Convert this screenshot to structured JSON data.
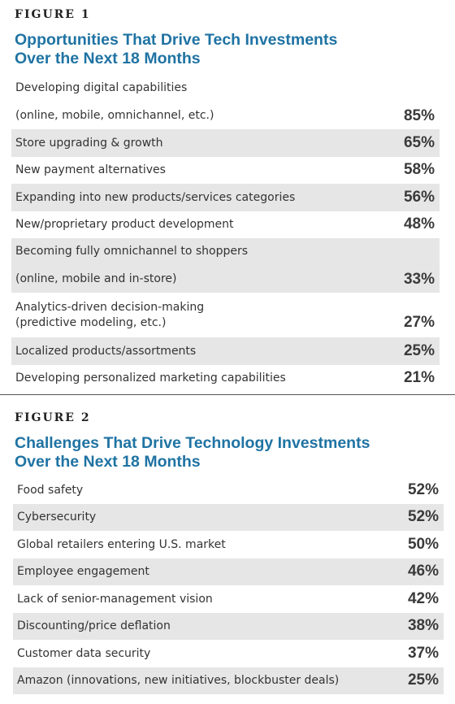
{
  "chart_data": [
    {
      "type": "table",
      "figure_label": "FIGURE 1",
      "title": "Opportunities That Drive Tech Investments Over the Next 18 Months",
      "title_lines": [
        "Opportunities That Drive Tech Investments",
        "Over the Next 18 Months"
      ],
      "rows": [
        {
          "label_lines": [
            "Developing digital capabilities",
            "(online, mobile, omnichannel, etc.)"
          ],
          "value": 85,
          "value_label": "85%"
        },
        {
          "label_lines": [
            "Store upgrading & growth"
          ],
          "value": 65,
          "value_label": "65%"
        },
        {
          "label_lines": [
            "New payment alternatives"
          ],
          "value": 58,
          "value_label": "58%"
        },
        {
          "label_lines": [
            "Expanding into new products/services categories"
          ],
          "value": 56,
          "value_label": "56%"
        },
        {
          "label_lines": [
            "New/proprietary product development"
          ],
          "value": 48,
          "value_label": "48%"
        },
        {
          "label_lines": [
            "Becoming fully omnichannel to shoppers",
            "(online, mobile and in-store)"
          ],
          "value": 33,
          "value_label": "33%"
        },
        {
          "label_lines": [
            "Analytics-driven decision-making",
            "(predictive modeling, etc.)"
          ],
          "value": 27,
          "value_label": "27%"
        },
        {
          "label_lines": [
            "Localized products/assortments"
          ],
          "value": 25,
          "value_label": "25%"
        },
        {
          "label_lines": [
            "Developing personalized marketing capabilities"
          ],
          "value": 21,
          "value_label": "21%"
        }
      ]
    },
    {
      "type": "table",
      "figure_label": "FIGURE 2",
      "title": "Challenges That Drive Technology Investments Over the Next 18 Months",
      "title_lines": [
        "Challenges That Drive Technology Investments",
        "Over the Next 18 Months"
      ],
      "rows": [
        {
          "label_lines": [
            "Food safety"
          ],
          "value": 52,
          "value_label": "52%"
        },
        {
          "label_lines": [
            "Cybersecurity"
          ],
          "value": 52,
          "value_label": "52%"
        },
        {
          "label_lines": [
            "Global retailers entering U.S. market"
          ],
          "value": 50,
          "value_label": "50%"
        },
        {
          "label_lines": [
            "Employee engagement"
          ],
          "value": 46,
          "value_label": "46%"
        },
        {
          "label_lines": [
            "Lack of senior-management vision"
          ],
          "value": 42,
          "value_label": "42%"
        },
        {
          "label_lines": [
            "Discounting/price deflation"
          ],
          "value": 38,
          "value_label": "38%"
        },
        {
          "label_lines": [
            "Customer data security"
          ],
          "value": 37,
          "value_label": "37%"
        },
        {
          "label_lines": [
            "Amazon (innovations, new initiatives, blockbuster deals)"
          ],
          "value": 25,
          "value_label": "25%"
        }
      ]
    }
  ],
  "colors": {
    "title": "#1f73a3",
    "row_shade": "#e6e6e6",
    "text": "#333333"
  }
}
